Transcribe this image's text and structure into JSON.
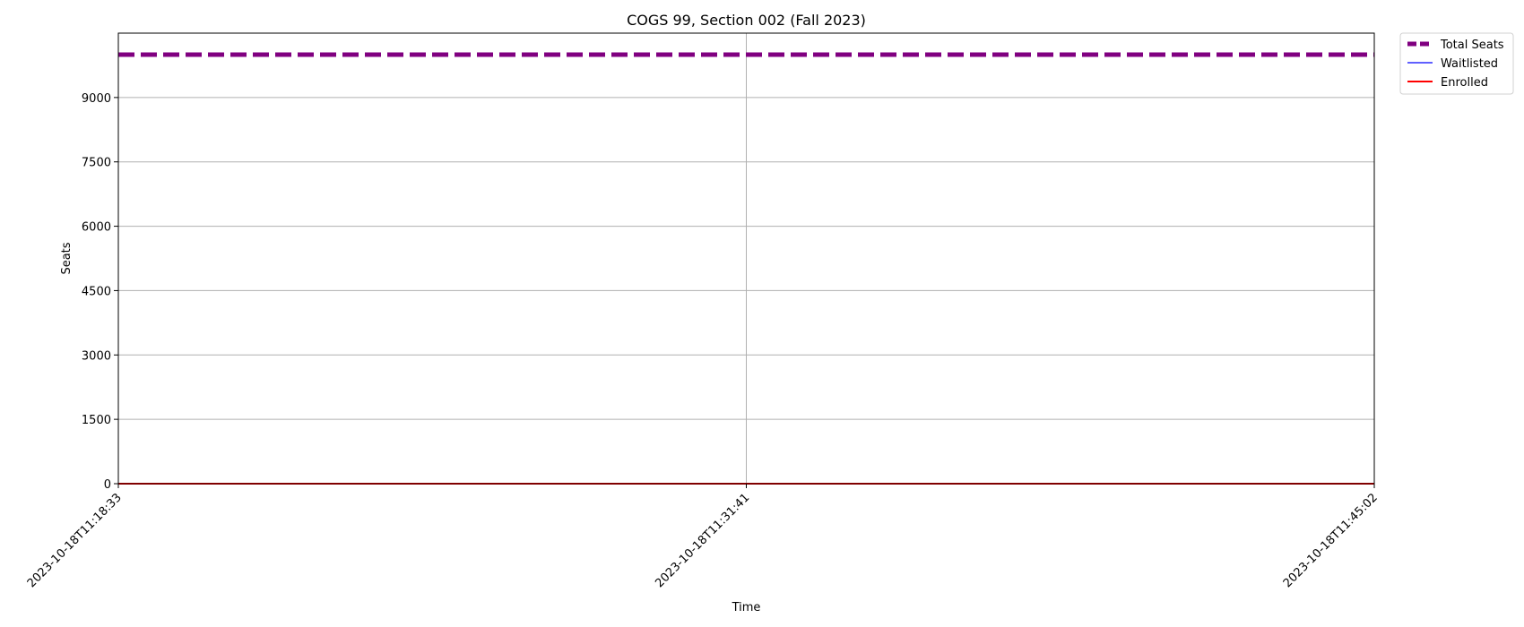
{
  "chart_data": {
    "type": "line",
    "title": "COGS 99, Section 002 (Fall 2023)",
    "xlabel": "Time",
    "ylabel": "Seats",
    "x": [
      "2023-10-18T11:18:33",
      "2023-10-18T11:31:41",
      "2023-10-18T11:45:02"
    ],
    "xticks": [
      "2023-10-18T11:18:33",
      "2023-10-18T11:31:41",
      "2023-10-18T11:45:02"
    ],
    "yticks": [
      0,
      1500,
      3000,
      4500,
      6000,
      7500,
      9000
    ],
    "ylim": [
      0,
      10500
    ],
    "grid": true,
    "legend_position": "outside-top-right",
    "series": [
      {
        "name": "Total Seats",
        "values": [
          10000,
          10000,
          10000
        ],
        "color": "#800080",
        "style": "dashed"
      },
      {
        "name": "Waitlisted",
        "values": [
          0,
          0,
          0
        ],
        "color": "#0000ff",
        "style": "solid"
      },
      {
        "name": "Enrolled",
        "values": [
          0,
          0,
          0
        ],
        "color": "#ff0000",
        "style": "solid"
      }
    ]
  }
}
